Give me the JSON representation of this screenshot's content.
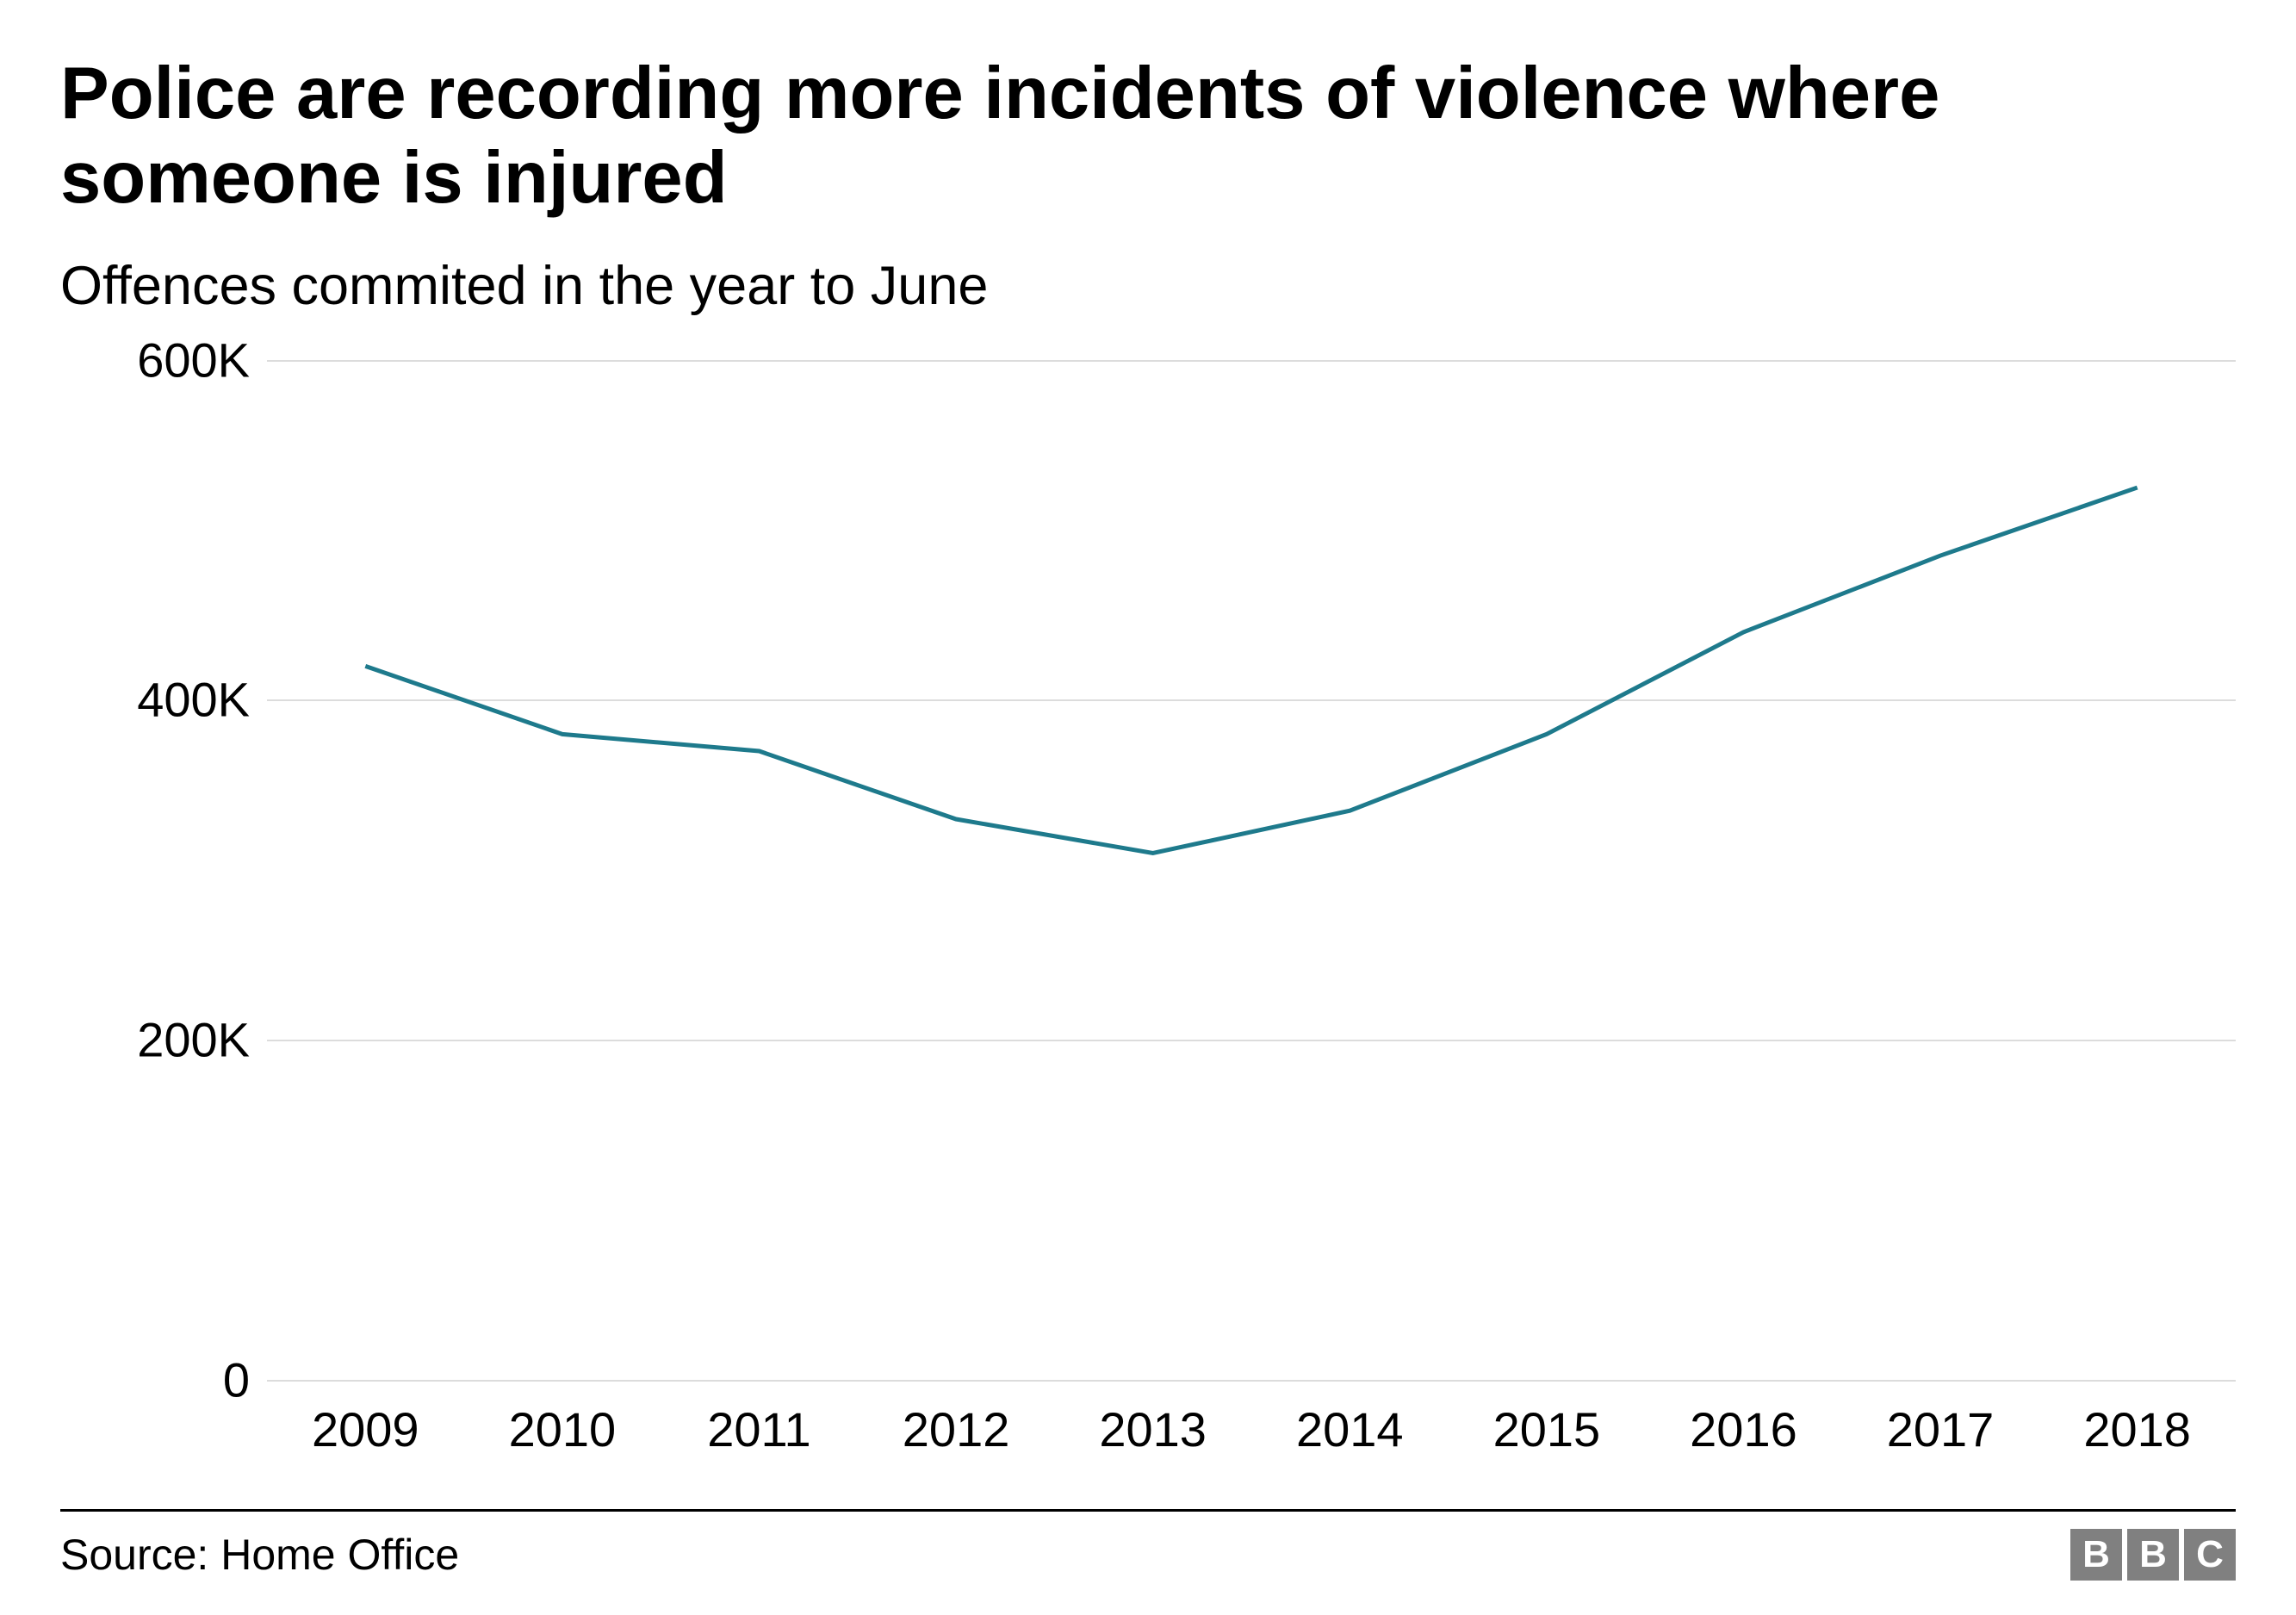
{
  "title": "Police are recording more incidents of violence where someone is injured",
  "subtitle": "Offences commited in the year to June",
  "source": "Source: Home Office",
  "logo": {
    "letters": [
      "B",
      "B",
      "C"
    ],
    "box_bg": "#808080",
    "box_fg": "#ffffff"
  },
  "chart": {
    "type": "line",
    "background_color": "#ffffff",
    "grid_color": "#dcdcdc",
    "line_color": "#1e7a8c",
    "line_width": 5,
    "text_color": "#000000",
    "tick_fontsize": 56,
    "ylim": [
      0,
      600000
    ],
    "y_ticks": [
      {
        "value": 0,
        "label": "0"
      },
      {
        "value": 200000,
        "label": "200K"
      },
      {
        "value": 400000,
        "label": "400K"
      },
      {
        "value": 600000,
        "label": "600K"
      }
    ],
    "x_labels": [
      "2009",
      "2010",
      "2011",
      "2012",
      "2013",
      "2014",
      "2015",
      "2016",
      "2017",
      "2018"
    ],
    "series": {
      "x": [
        2009,
        2010,
        2011,
        2012,
        2013,
        2014,
        2015,
        2016,
        2017,
        2018
      ],
      "y": [
        420000,
        380000,
        370000,
        330000,
        310000,
        335000,
        380000,
        440000,
        485000,
        525000
      ]
    }
  }
}
